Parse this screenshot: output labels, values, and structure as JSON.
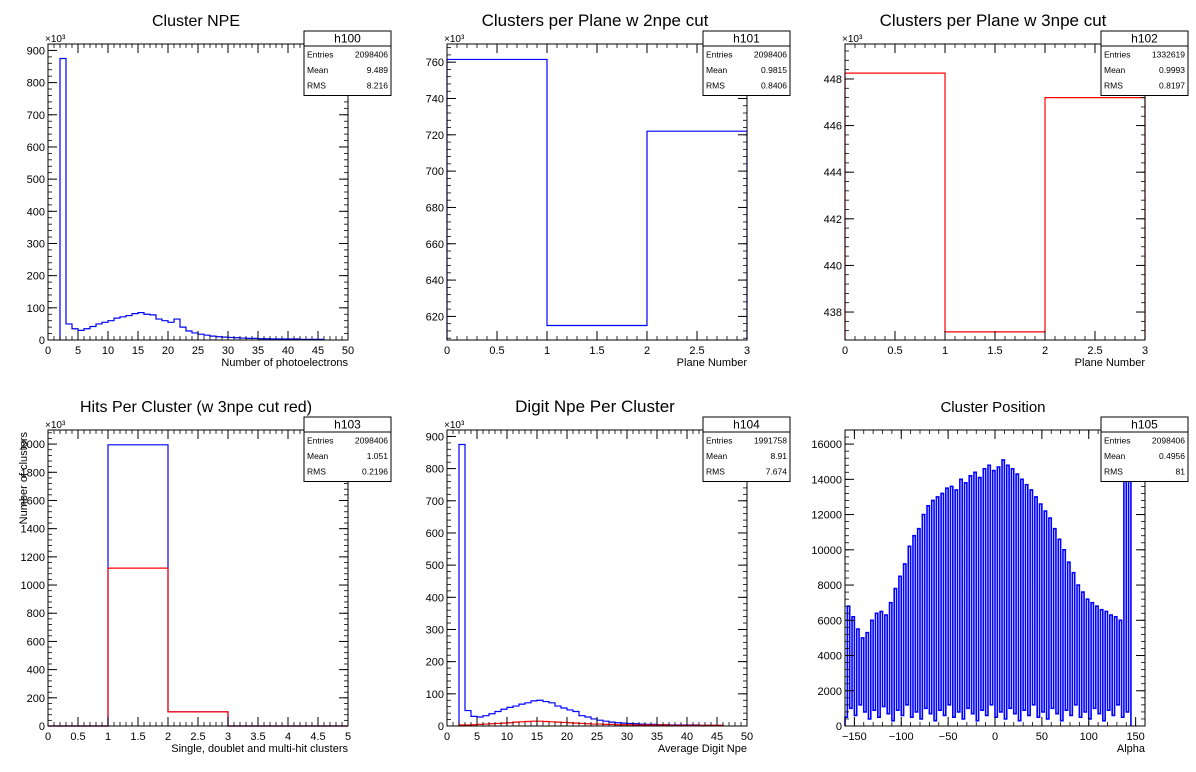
{
  "colors": {
    "blue": "#0000ff",
    "red": "#ff0000",
    "axis": "#000000"
  },
  "chart_data": [
    {
      "id": "h100",
      "type": "histogram",
      "title": "Cluster NPE",
      "xlabel": "Number of photoelectrons",
      "ylabel": "",
      "yexp": "×10³",
      "xlim": [
        0,
        50
      ],
      "ylim": [
        0,
        920
      ],
      "xticks": [
        "0",
        "5",
        "10",
        "15",
        "20",
        "25",
        "30",
        "35",
        "40",
        "45",
        "50"
      ],
      "xtick_values": [
        0,
        5,
        10,
        15,
        20,
        25,
        30,
        35,
        40,
        45,
        50
      ],
      "yticks": [
        "0",
        "100",
        "200",
        "300",
        "400",
        "500",
        "600",
        "700",
        "800",
        "900"
      ],
      "ytick_values": [
        0,
        100,
        200,
        300,
        400,
        500,
        600,
        700,
        800,
        900
      ],
      "xmin_bins": 2,
      "bin_width": 1,
      "series": [
        {
          "color": "blue",
          "values": [
            875,
            50,
            35,
            30,
            35,
            42,
            50,
            55,
            60,
            68,
            72,
            76,
            82,
            85,
            80,
            78,
            65,
            60,
            55,
            65,
            40,
            28,
            22,
            18,
            15,
            12,
            10,
            9,
            8,
            7,
            6,
            5,
            5,
            4,
            4,
            3,
            3,
            3,
            3,
            3,
            2,
            2,
            2,
            2
          ]
        }
      ],
      "stats": {
        "name": "h100",
        "rows": [
          [
            "Entries",
            "2098406"
          ],
          [
            "Mean",
            "9.489"
          ],
          [
            "RMS",
            "8.216"
          ]
        ]
      }
    },
    {
      "id": "h101",
      "type": "histogram",
      "title": "Clusters per Plane w 2npe cut",
      "xlabel": "Plane Number",
      "ylabel": "",
      "yexp": "×10³",
      "xlim": [
        0,
        3
      ],
      "ylim": [
        607,
        770
      ],
      "xticks": [
        "0",
        "0.5",
        "1",
        "1.5",
        "2",
        "2.5",
        "3"
      ],
      "xtick_values": [
        0,
        0.5,
        1,
        1.5,
        2,
        2.5,
        3
      ],
      "yticks": [
        "620",
        "640",
        "660",
        "680",
        "700",
        "720",
        "740",
        "760"
      ],
      "ytick_values": [
        620,
        640,
        660,
        680,
        700,
        720,
        740,
        760
      ],
      "xmin_bins": 0,
      "bin_width": 1,
      "series": [
        {
          "color": "blue",
          "values": [
            761.5,
            615.0,
            722.0
          ]
        }
      ],
      "stats": {
        "name": "h101",
        "rows": [
          [
            "Entries",
            "2098406"
          ],
          [
            "Mean",
            "0.9815"
          ],
          [
            "RMS",
            "0.8406"
          ]
        ]
      }
    },
    {
      "id": "h102",
      "type": "histogram",
      "title": "Clusters per Plane w 3npe cut",
      "xlabel": "Plane Number",
      "ylabel": "",
      "yexp": "×10³",
      "xlim": [
        0,
        3
      ],
      "ylim": [
        436.8,
        449.5
      ],
      "xticks": [
        "0",
        "0.5",
        "1",
        "1.5",
        "2",
        "2.5",
        "3"
      ],
      "xtick_values": [
        0,
        0.5,
        1,
        1.5,
        2,
        2.5,
        3
      ],
      "yticks": [
        "438",
        "440",
        "442",
        "444",
        "446",
        "448"
      ],
      "ytick_values": [
        438,
        440,
        442,
        444,
        446,
        448
      ],
      "xmin_bins": 0,
      "bin_width": 1,
      "series": [
        {
          "color": "red",
          "values": [
            448.25,
            437.15,
            447.2
          ]
        }
      ],
      "stats": {
        "name": "h102",
        "rows": [
          [
            "Entries",
            "1332619"
          ],
          [
            "Mean",
            "0.9993"
          ],
          [
            "RMS",
            "0.8197"
          ]
        ]
      }
    },
    {
      "id": "h103",
      "type": "histogram",
      "title": "Hits Per Cluster (w 3npe cut red)",
      "xlabel": "Single, doublet and multi-hit clusters",
      "ylabel": "Number of clusters",
      "yexp": "×10³",
      "xlim": [
        0,
        5
      ],
      "ylim": [
        0,
        2100
      ],
      "xticks": [
        "0",
        "0.5",
        "1",
        "1.5",
        "2",
        "2.5",
        "3",
        "3.5",
        "4",
        "4.5",
        "5"
      ],
      "xtick_values": [
        0,
        0.5,
        1,
        1.5,
        2,
        2.5,
        3,
        3.5,
        4,
        4.5,
        5
      ],
      "yticks": [
        "0",
        "200",
        "400",
        "600",
        "800",
        "1000",
        "1200",
        "1400",
        "1600",
        "1800",
        "2000"
      ],
      "ytick_values": [
        0,
        200,
        400,
        600,
        800,
        1000,
        1200,
        1400,
        1600,
        1800,
        2000
      ],
      "xmin_bins": 0,
      "bin_width": 1,
      "series": [
        {
          "color": "blue",
          "values": [
            0,
            1995,
            100,
            0,
            0
          ]
        },
        {
          "color": "red",
          "values": [
            0,
            1120,
            100,
            0,
            0
          ]
        }
      ],
      "stats": {
        "name": "h103",
        "rows": [
          [
            "Entries",
            "2098406"
          ],
          [
            "Mean",
            "1.051"
          ],
          [
            "RMS",
            "0.2196"
          ]
        ]
      }
    },
    {
      "id": "h104",
      "type": "histogram",
      "title": "Digit Npe Per Cluster",
      "xlabel": "Average Digit Npe",
      "ylabel": "",
      "yexp": "×10³",
      "xlim": [
        0,
        50
      ],
      "ylim": [
        0,
        920
      ],
      "xticks": [
        "0",
        "5",
        "10",
        "15",
        "20",
        "25",
        "30",
        "35",
        "40",
        "45",
        "50"
      ],
      "xtick_values": [
        0,
        5,
        10,
        15,
        20,
        25,
        30,
        35,
        40,
        45,
        50
      ],
      "yticks": [
        "0",
        "100",
        "200",
        "300",
        "400",
        "500",
        "600",
        "700",
        "800",
        "900"
      ],
      "ytick_values": [
        0,
        100,
        200,
        300,
        400,
        500,
        600,
        700,
        800,
        900
      ],
      "xmin_bins": 2,
      "bin_width": 1,
      "series": [
        {
          "color": "blue",
          "values": [
            875,
            48,
            30,
            28,
            32,
            38,
            45,
            52,
            58,
            62,
            68,
            72,
            78,
            80,
            76,
            72,
            62,
            56,
            50,
            45,
            32,
            28,
            22,
            18,
            15,
            12,
            10,
            9,
            8,
            7,
            6,
            5,
            5,
            4,
            4,
            3,
            3,
            3,
            3,
            3,
            2,
            2,
            2,
            2
          ]
        },
        {
          "color": "red",
          "values": [
            3,
            3,
            4,
            5,
            6,
            7,
            8,
            9,
            10,
            12,
            13,
            14,
            15,
            15,
            14,
            13,
            12,
            11,
            10,
            9,
            8,
            7,
            6,
            6,
            5,
            5,
            4,
            4,
            4,
            3,
            3,
            3,
            3,
            3,
            3,
            2,
            2,
            2,
            2,
            2,
            2,
            2,
            2,
            2
          ]
        }
      ],
      "stats": {
        "name": "h104",
        "rows": [
          [
            "Entries",
            "1991758"
          ],
          [
            "Mean",
            "8.91"
          ],
          [
            "RMS",
            "7.674"
          ]
        ]
      }
    },
    {
      "id": "h105",
      "type": "histogram",
      "title": "Cluster Position",
      "xlabel": "Alpha",
      "ylabel": "",
      "yexp": "",
      "xlim": [
        -160,
        160
      ],
      "ylim": [
        0,
        16800
      ],
      "xticks": [
        "−150",
        "−100",
        "−50",
        "0",
        "50",
        "100",
        "150"
      ],
      "xtick_values": [
        -150,
        -100,
        -50,
        0,
        50,
        100,
        150
      ],
      "yticks": [
        "0",
        "2000",
        "4000",
        "6000",
        "8000",
        "10000",
        "12000",
        "14000",
        "16000"
      ],
      "ytick_values": [
        0,
        2000,
        4000,
        6000,
        8000,
        10000,
        12000,
        14000,
        16000
      ],
      "xmin_bins": -160,
      "bin_width": 2.5,
      "series": [
        {
          "color": "blue",
          "values": [
            500,
            6800,
            1000,
            6200,
            600,
            5500,
            1200,
            5000,
            800,
            5300,
            400,
            6000,
            900,
            6400,
            500,
            6500,
            1100,
            6300,
            700,
            7000,
            300,
            7800,
            900,
            8500,
            600,
            9200,
            1200,
            10200,
            500,
            10800,
            800,
            11200,
            400,
            12000,
            1000,
            12500,
            700,
            12800,
            300,
            13000,
            900,
            13200,
            600,
            13500,
            1200,
            13600,
            500,
            13400,
            800,
            14000,
            400,
            13800,
            1000,
            14200,
            700,
            14400,
            300,
            14100,
            900,
            14600,
            600,
            14800,
            1200,
            14500,
            500,
            14700,
            800,
            15100,
            400,
            14800,
            1000,
            14600,
            700,
            14300,
            300,
            14000,
            900,
            13700,
            600,
            13400,
            1200,
            13000,
            500,
            12600,
            800,
            12200,
            400,
            11800,
            1000,
            11200,
            700,
            10600,
            300,
            10000,
            900,
            9300,
            600,
            8700,
            1200,
            8000,
            500,
            7600,
            800,
            7200,
            400,
            7000,
            1000,
            6800,
            700,
            6600,
            300,
            6500,
            900,
            6300,
            600,
            6200,
            1200,
            6000,
            500,
            15000,
            800,
            14000
          ]
        }
      ],
      "stats": {
        "name": "h105",
        "rows": [
          [
            "Entries",
            "2098406"
          ],
          [
            "Mean",
            "0.4956"
          ],
          [
            "RMS",
            "81"
          ]
        ]
      }
    }
  ]
}
